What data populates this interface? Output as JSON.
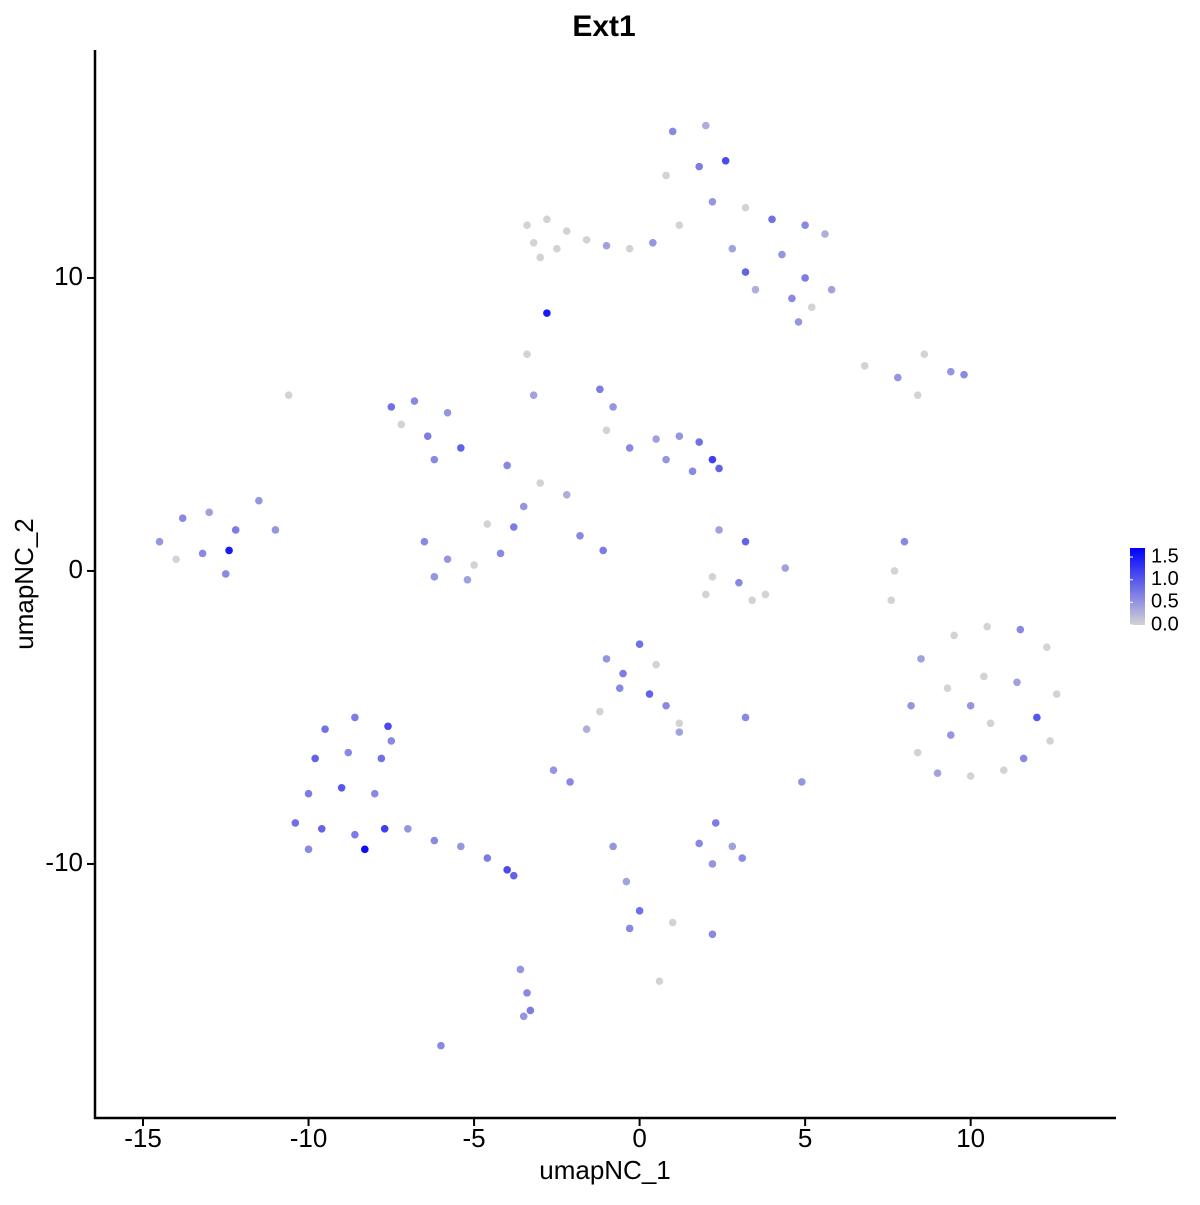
{
  "chart_data": {
    "type": "scatter",
    "title": "Ext1",
    "x_label": "umapNC_1",
    "y_label": "umapNC_2",
    "xlim": [
      -16.45,
      14.39
    ],
    "ylim": [
      -18.67,
      17.78
    ],
    "xticks": [
      -15,
      -10,
      -5,
      0,
      5,
      10
    ],
    "yticks": [
      -10,
      0,
      10
    ],
    "low_color": "#d3d3d3",
    "high_color": "#0000ff",
    "colorbar_lim": [
      0,
      1.7
    ],
    "colorbar_ticks": [
      {
        "value": 0,
        "label": "0.0"
      },
      0.5,
      {
        "value": 1,
        "label": "1.0"
      },
      1.5
    ],
    "x": [
      1,
      2,
      0.8,
      1.8,
      2.6,
      2.2,
      3.2,
      4,
      5,
      5.6,
      4.3,
      5,
      5.8,
      5.2,
      4.6,
      3.5,
      1.2,
      2.8,
      4.8,
      3.2,
      -3.4,
      -2.8,
      -2.2,
      -1.6,
      -1,
      -0.3,
      -3.2,
      -2.5,
      0.4,
      -3,
      -2.8,
      -7.5,
      -6.8,
      -7.2,
      -6.4,
      -5.8,
      -5.4,
      -6.2,
      -1.2,
      -0.8,
      -1,
      -0.3,
      0.5,
      1.2,
      1.8,
      2.2,
      2.4,
      1.6,
      0.8,
      -4,
      -3,
      -2.2,
      -3.5,
      -3.4,
      -3.2,
      -6.5,
      -5.8,
      -5,
      -4.2,
      -3.8,
      -5.2,
      -6.2,
      -4.6,
      -1.8,
      -1.1,
      -14.5,
      -13.8,
      -13,
      -12.2,
      -11.5,
      -14,
      -13.2,
      -12.4,
      -11,
      -12.5,
      8.5,
      9.5,
      10.5,
      11.5,
      12.3,
      8.2,
      9.3,
      10.4,
      11.4,
      12.6,
      8.4,
      9.4,
      10.6,
      11.6,
      12.4,
      9,
      10,
      11,
      12,
      10,
      -9.5,
      -8.6,
      -7.6,
      -9.8,
      -8.8,
      -7.8,
      -10,
      -9,
      -8,
      -10.4,
      -9.6,
      -8.6,
      -7.7,
      -10,
      -8.3,
      -7,
      -6.2,
      -5.4,
      -4.6,
      -4,
      -3.8,
      -7.5,
      -1,
      0,
      0.5,
      -0.6,
      0.3,
      -1.2,
      0.8,
      1.2,
      -0.5,
      1.2,
      -2.6,
      -2.1,
      -1.6,
      2.4,
      3.2,
      2.2,
      3,
      3.8,
      4.4,
      2,
      3.4,
      1.8,
      2.3,
      2.8,
      3.1,
      2.2,
      -0.8,
      -0.4,
      0,
      -0.3,
      1,
      2.2,
      -3.6,
      -3.4,
      -3.3,
      -3.5,
      6.8,
      7.8,
      8.6,
      9.4,
      9.8,
      8.4,
      8,
      7.7,
      7.6,
      -6,
      0.6,
      4.9,
      3.2,
      -10.6
    ],
    "y": [
      15,
      15.2,
      13.5,
      13.8,
      14,
      12.6,
      12.4,
      12,
      11.8,
      11.5,
      10.8,
      10,
      9.6,
      9,
      9.3,
      9.6,
      11.8,
      11,
      8.5,
      10.2,
      11.8,
      12,
      11.6,
      11.3,
      11.1,
      11,
      11.2,
      11,
      11.2,
      10.7,
      8.8,
      5.6,
      5.8,
      5,
      4.6,
      5.4,
      4.2,
      3.8,
      6.2,
      5.6,
      4.8,
      4.2,
      4.5,
      4.6,
      4.4,
      3.8,
      3.5,
      3.4,
      3.8,
      3.6,
      3,
      2.6,
      2.2,
      7.4,
      6,
      1,
      0.4,
      0.2,
      0.6,
      1.5,
      -0.3,
      -0.2,
      1.6,
      1.2,
      0.7,
      1,
      1.8,
      2,
      1.4,
      2.4,
      0.4,
      0.6,
      0.7,
      1.4,
      -0.1,
      -3,
      -2.2,
      -1.9,
      -2,
      -2.6,
      -4.6,
      -4,
      -3.6,
      -3.8,
      -4.2,
      -6.2,
      -5.6,
      -5.2,
      -6.4,
      -5.8,
      -6.9,
      -7,
      -6.8,
      -5,
      -4.6,
      -5.4,
      -5,
      -5.3,
      -6.4,
      -6.2,
      -6.4,
      -7.6,
      -7.4,
      -7.6,
      -8.6,
      -8.8,
      -9,
      -8.8,
      -9.5,
      -9.5,
      -8.8,
      -9.2,
      -9.4,
      -9.8,
      -10.2,
      -10.4,
      -5.8,
      -3,
      -2.5,
      -3.2,
      -4,
      -4.2,
      -4.8,
      -4.6,
      -5.2,
      -3.5,
      -5.5,
      -6.8,
      -7.2,
      -5.4,
      1.4,
      1,
      -0.2,
      -0.4,
      -0.8,
      0.1,
      -0.8,
      -1,
      -9.3,
      -8.6,
      -9.4,
      -9.8,
      -10,
      -9.4,
      -10.6,
      -11.6,
      -12.2,
      -12,
      -12.4,
      -13.6,
      -14.4,
      -15,
      -15.2,
      7,
      6.6,
      7.4,
      6.8,
      6.7,
      6,
      1,
      0,
      -1,
      -16.2,
      -14,
      -7.2,
      -5,
      6
    ],
    "values": [
      0.6,
      0.3,
      0,
      0.7,
      1.1,
      0.5,
      0,
      0.8,
      0.6,
      0.3,
      0.5,
      0.7,
      0.4,
      0,
      0.6,
      0.3,
      0,
      0.4,
      0.5,
      0.9,
      0,
      0,
      0,
      0,
      0.4,
      0,
      0,
      0,
      0.5,
      0,
      1.5,
      0.8,
      0.6,
      0,
      0.7,
      0.5,
      0.9,
      0.6,
      0.7,
      0.5,
      0,
      0.6,
      0.4,
      0.5,
      0.8,
      1.2,
      0.9,
      0.6,
      0.5,
      0.6,
      0,
      0.3,
      0.5,
      0,
      0.4,
      0.6,
      0.5,
      0,
      0.6,
      0.7,
      0.4,
      0.5,
      0,
      0.6,
      0.7,
      0.5,
      0.6,
      0.4,
      0.7,
      0.5,
      0,
      0.6,
      1.5,
      0.5,
      0.6,
      0.4,
      0,
      0,
      0.6,
      0,
      0.5,
      0,
      0,
      0.4,
      0,
      0,
      0.5,
      0,
      0.6,
      0,
      0.4,
      0,
      0,
      1.0,
      0.5,
      0.8,
      0.7,
      1.1,
      0.9,
      0.6,
      0.8,
      0.7,
      1.0,
      0.6,
      0.8,
      0.9,
      0.7,
      1.2,
      0.6,
      1.6,
      0.5,
      0.6,
      0.5,
      0.7,
      1.1,
      0.9,
      0.6,
      0.5,
      0.8,
      0,
      0.6,
      0.9,
      0,
      0.6,
      0,
      0.7,
      0.4,
      0.5,
      0.6,
      0.3,
      0.4,
      0.9,
      0,
      0.6,
      0,
      0.4,
      0,
      0,
      0.6,
      0.7,
      0.4,
      0.6,
      0.5,
      0.5,
      0.4,
      0.8,
      0.6,
      0,
      0.6,
      0.5,
      0.6,
      0.7,
      0.5,
      0,
      0.5,
      0,
      0.5,
      0.6,
      0,
      0.6,
      0,
      0,
      0.6,
      0,
      0.5,
      0.6,
      0
    ]
  }
}
